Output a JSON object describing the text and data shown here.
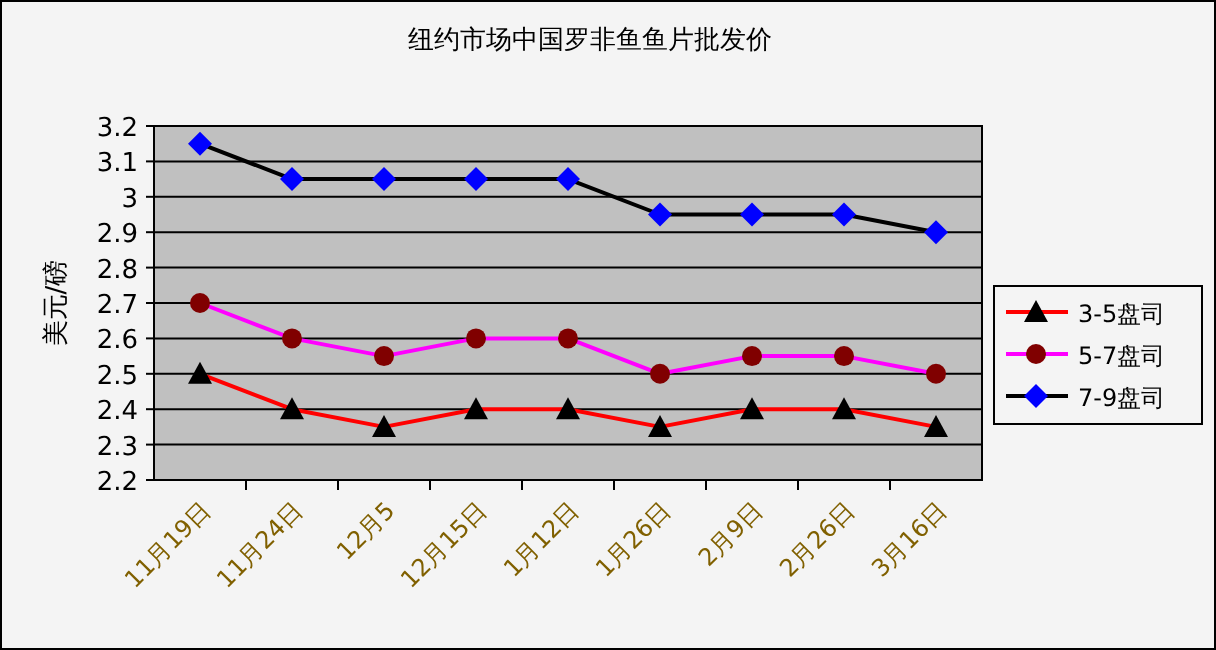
{
  "chart_data": {
    "type": "line",
    "title": "纽约市场中国罗非鱼鱼片批发价",
    "ylabel": "美元/磅",
    "categories": [
      "11月19日",
      "11月24日",
      "12月5",
      "12月15日",
      "1月12日",
      "1月26日",
      "2月9日",
      "2月26日",
      "3月16日"
    ],
    "series": [
      {
        "name": "3-5盘司",
        "color": "#ff0000",
        "marker": "triangle",
        "colors": [
          "#000000",
          "#000000",
          "#000000",
          "#000000",
          "#000000",
          "#000000",
          "#000000",
          "#000000",
          "#000000"
        ],
        "values": [
          2.5,
          2.4,
          2.35,
          2.4,
          2.4,
          2.35,
          2.4,
          2.4,
          2.35
        ]
      },
      {
        "name": "5-7盘司",
        "color": "#ff00ff",
        "marker": "circle",
        "colors": [
          "#800000",
          "#800000",
          "#800000",
          "#800000",
          "#800000",
          "#800000",
          "#800000",
          "#800000",
          "#800000"
        ],
        "values": [
          2.7,
          2.6,
          2.55,
          2.6,
          2.6,
          2.5,
          2.55,
          2.55,
          2.5
        ]
      },
      {
        "name": "7-9盘司",
        "color": "#000000",
        "marker": "diamond",
        "colors": [
          "#0000ff",
          "#0000ff",
          "#0000ff",
          "#0000ff",
          "#0000ff",
          "#0000ff",
          "#0000ff",
          "#0000ff",
          "#0000ff"
        ],
        "values": [
          3.15,
          3.05,
          3.05,
          3.05,
          3.05,
          2.95,
          2.95,
          2.95,
          2.9
        ]
      }
    ],
    "ylim": [
      2.2,
      3.2
    ],
    "yticks": [
      2.2,
      2.3,
      2.4,
      2.5,
      2.6,
      2.7,
      2.8,
      2.9,
      3,
      3.1,
      3.2
    ],
    "grid": "y",
    "legend": "right"
  }
}
